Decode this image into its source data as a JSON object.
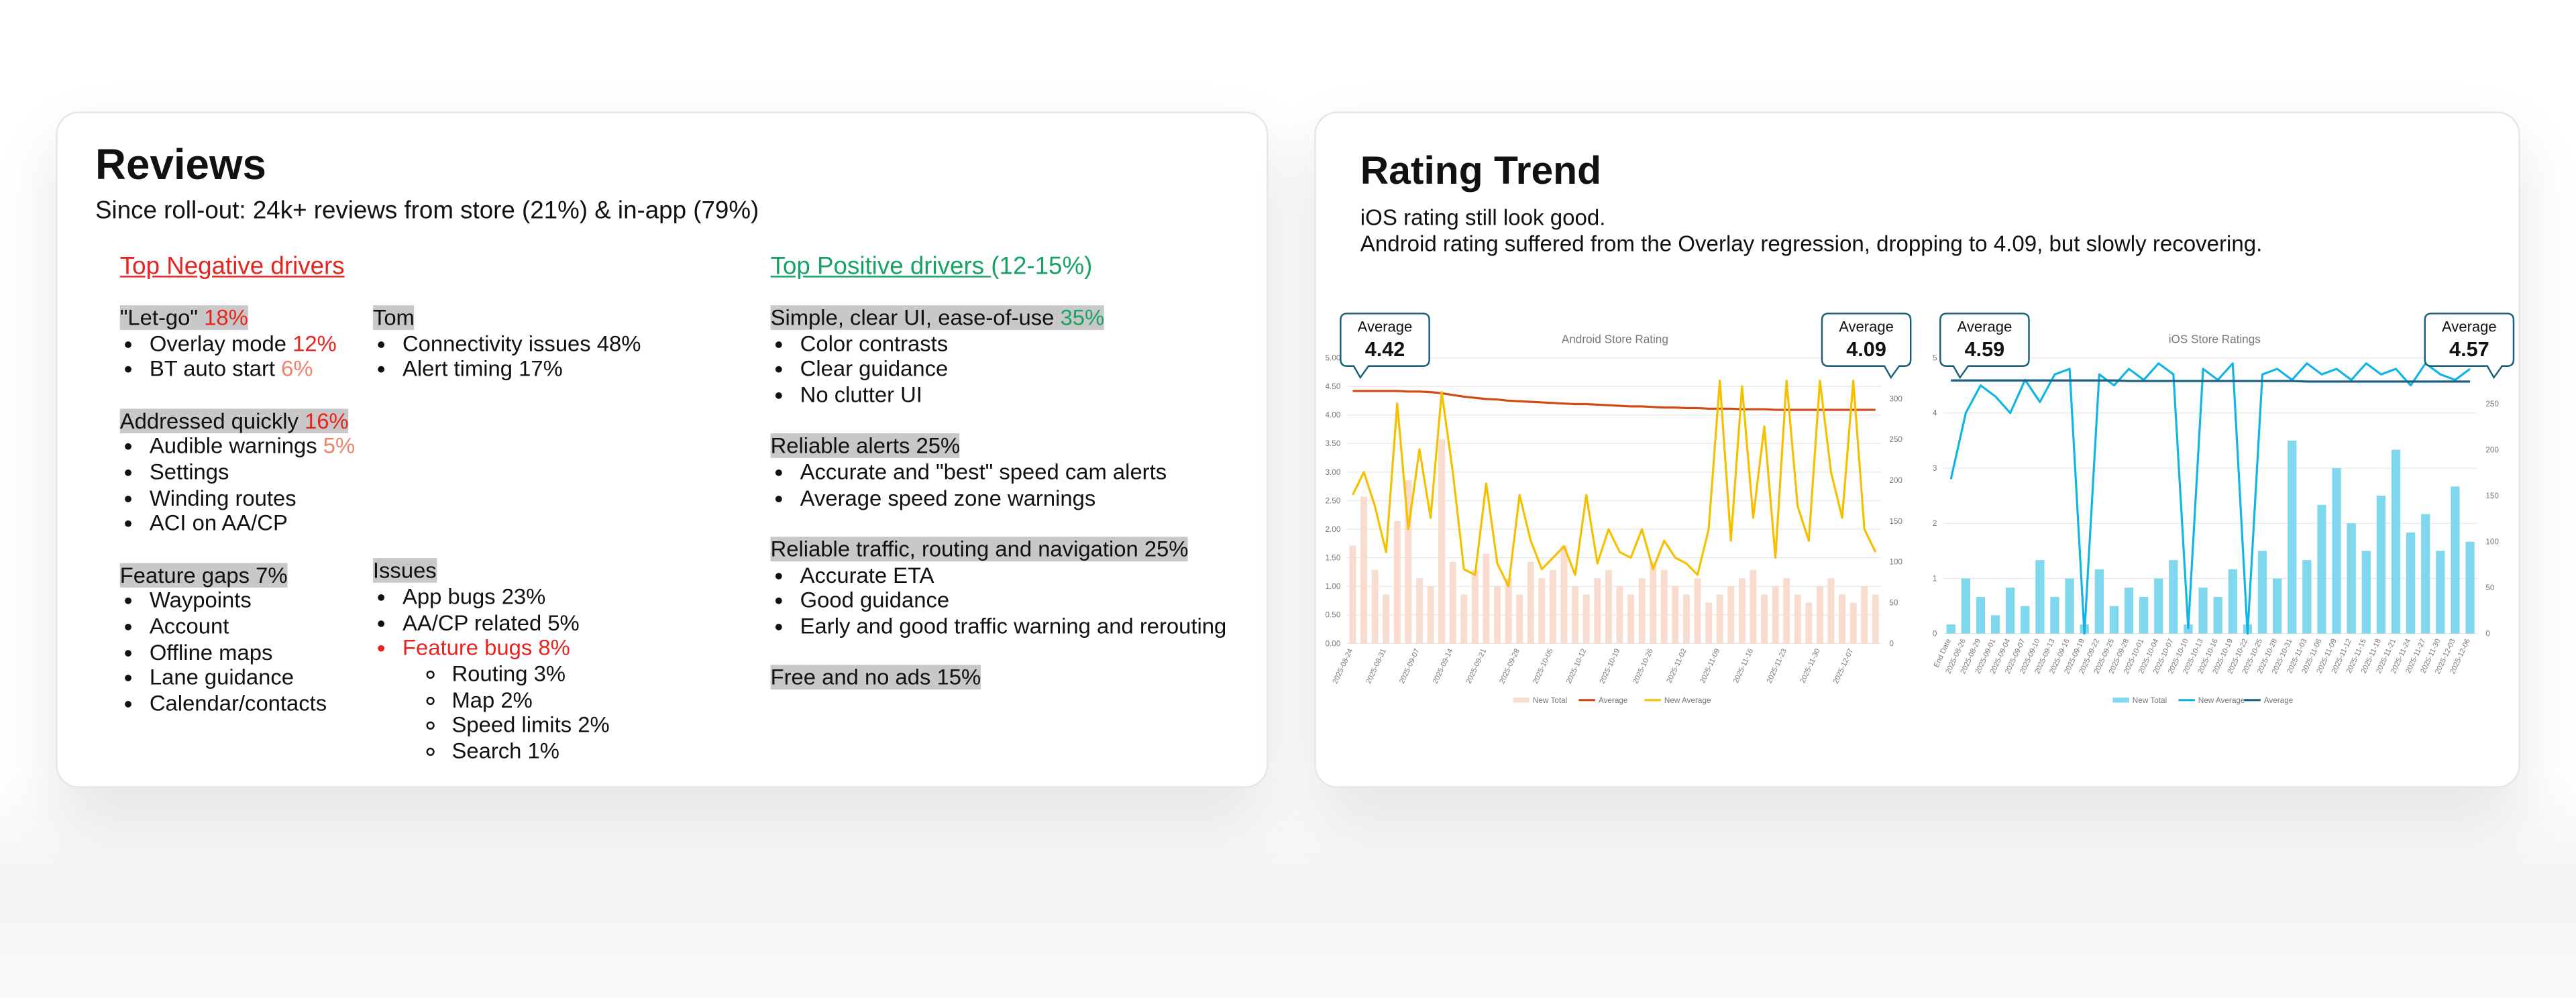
{
  "reviews": {
    "title": "Reviews",
    "subtitle": "Since roll-out: 24k+ reviews from store (21%) & in-app (79%)",
    "negative_heading": "Top Negative drivers",
    "positive_heading": "Top Positive drivers ",
    "positive_range": "(12-15%)",
    "columns": [
      [
        {
          "heading": [
            {
              "text": "\"Let-go\" "
            },
            {
              "text": "18%",
              "color": "#e8231d"
            }
          ],
          "items": [
            {
              "spans": [
                {
                  "text": "Overlay mode "
                },
                {
                  "text": "12%",
                  "color": "#e8231d"
                }
              ]
            },
            {
              "spans": [
                {
                  "text": "BT auto start "
                },
                {
                  "text": "6%",
                  "color": "#f0826a"
                }
              ]
            }
          ]
        },
        {
          "heading": [
            {
              "text": "Addressed quickly "
            },
            {
              "text": "16%",
              "color": "#e8231d"
            }
          ],
          "items": [
            {
              "spans": [
                {
                  "text": "Audible warnings "
                },
                {
                  "text": "5%",
                  "color": "#f0826a"
                }
              ]
            },
            {
              "spans": [
                {
                  "text": "Settings"
                }
              ]
            },
            {
              "spans": [
                {
                  "text": "Winding routes"
                }
              ]
            },
            {
              "spans": [
                {
                  "text": "ACI on AA/CP"
                }
              ]
            }
          ]
        },
        {
          "heading": [
            {
              "text": "Feature gaps 7%"
            }
          ],
          "items": [
            {
              "spans": [
                {
                  "text": "Waypoints"
                }
              ]
            },
            {
              "spans": [
                {
                  "text": "Account"
                }
              ]
            },
            {
              "spans": [
                {
                  "text": "Offline maps"
                }
              ]
            },
            {
              "spans": [
                {
                  "text": "Lane guidance"
                }
              ]
            },
            {
              "spans": [
                {
                  "text": "Calendar/contacts"
                }
              ]
            }
          ]
        }
      ],
      [
        {
          "heading": [
            {
              "text": "Tom"
            }
          ],
          "items": [
            {
              "spans": [
                {
                  "text": "Connectivity issues 48%"
                }
              ]
            },
            {
              "spans": [
                {
                  "text": "Alert timing 17%"
                }
              ]
            }
          ]
        },
        {
          "heading": [
            {
              "text": "Issues"
            }
          ],
          "items": [
            {
              "spans": [
                {
                  "text": "App bugs 23%"
                }
              ]
            },
            {
              "spans": [
                {
                  "text": "AA/CP related 5%"
                }
              ]
            },
            {
              "spans": [
                {
                  "text": "Feature bugs 8%"
                }
              ],
              "color": "#e8231d",
              "sub": [
                {
                  "spans": [
                    {
                      "text": "Routing 3%"
                    }
                  ]
                },
                {
                  "spans": [
                    {
                      "text": "Map 2%"
                    }
                  ]
                },
                {
                  "spans": [
                    {
                      "text": "Speed limits 2%"
                    }
                  ]
                },
                {
                  "spans": [
                    {
                      "text": "Search 1%"
                    }
                  ]
                }
              ]
            }
          ]
        }
      ],
      [
        {
          "heading": [
            {
              "text": "Simple, clear UI, ease-of-use "
            },
            {
              "text": "35%",
              "color": "#17a363"
            }
          ],
          "items": [
            {
              "spans": [
                {
                  "text": "Color contrasts"
                }
              ]
            },
            {
              "spans": [
                {
                  "text": "Clear guidance"
                }
              ]
            },
            {
              "spans": [
                {
                  "text": "No clutter UI"
                }
              ]
            }
          ]
        },
        {
          "heading": [
            {
              "text": "Reliable alerts 25%"
            }
          ],
          "items": [
            {
              "spans": [
                {
                  "text": "Accurate and \"best\" speed cam alerts"
                }
              ]
            },
            {
              "spans": [
                {
                  "text": "Average speed zone warnings"
                }
              ]
            }
          ]
        },
        {
          "heading": [
            {
              "text": "Reliable traffic, routing and navigation 25%"
            }
          ],
          "items": [
            {
              "spans": [
                {
                  "text": "Accurate ETA"
                }
              ]
            },
            {
              "spans": [
                {
                  "text": "Good guidance"
                }
              ]
            },
            {
              "spans": [
                {
                  "text": "Early and good traffic warning and rerouting"
                }
              ]
            }
          ]
        },
        {
          "heading": [
            {
              "text": "Free and no ads 15%"
            }
          ],
          "items": []
        }
      ]
    ]
  },
  "rating": {
    "title": "Rating Trend",
    "lines": [
      "iOS rating still look good.",
      "Android rating suffered from the Overlay regression, dropping to 4.09, but slowly recovering."
    ]
  },
  "chart_data": [
    {
      "type": "combo",
      "title": "Android Store Rating",
      "categories": [
        "2025-08-24",
        null,
        null,
        "2025-08-31",
        null,
        null,
        "2025-09-07",
        null,
        null,
        "2025-09-14",
        null,
        null,
        "2025-09-21",
        null,
        null,
        "2025-09-28",
        null,
        null,
        "2025-10-05",
        null,
        null,
        "2025-10-12",
        null,
        null,
        "2025-10-19",
        null,
        null,
        "2025-10-26",
        null,
        null,
        "2025-11-02",
        null,
        null,
        "2025-11-09",
        null,
        null,
        "2025-11-16",
        null,
        null,
        "2025-11-23",
        null,
        null,
        "2025-11-30",
        null,
        null,
        "2025-12-07",
        null,
        null
      ],
      "series": [
        {
          "name": "New Total",
          "kind": "bar",
          "axis": "y2",
          "color": "#f8dccf",
          "values": [
            120,
            180,
            90,
            60,
            150,
            200,
            80,
            70,
            250,
            100,
            60,
            90,
            110,
            70,
            80,
            60,
            100,
            80,
            90,
            120,
            70,
            60,
            80,
            90,
            70,
            60,
            80,
            100,
            90,
            70,
            60,
            80,
            50,
            60,
            70,
            80,
            90,
            60,
            70,
            80,
            60,
            50,
            70,
            80,
            60,
            50,
            70,
            60
          ]
        },
        {
          "name": "Average",
          "kind": "line",
          "color": "#d04a12",
          "values": [
            4.42,
            4.42,
            4.42,
            4.42,
            4.42,
            4.41,
            4.41,
            4.4,
            4.38,
            4.35,
            4.32,
            4.3,
            4.28,
            4.27,
            4.25,
            4.24,
            4.23,
            4.22,
            4.21,
            4.2,
            4.19,
            4.19,
            4.18,
            4.17,
            4.16,
            4.15,
            4.15,
            4.14,
            4.13,
            4.13,
            4.12,
            4.12,
            4.11,
            4.11,
            4.11,
            4.1,
            4.1,
            4.1,
            4.09,
            4.09,
            4.09,
            4.09,
            4.09,
            4.09,
            4.09,
            4.09,
            4.09,
            4.09
          ]
        },
        {
          "name": "New Average",
          "kind": "line",
          "color": "#f5c000",
          "values": [
            2.6,
            3.0,
            2.4,
            1.6,
            4.2,
            2.0,
            3.4,
            2.2,
            4.4,
            3.0,
            1.3,
            1.2,
            2.8,
            1.4,
            1.0,
            2.6,
            1.8,
            1.3,
            1.5,
            1.7,
            1.2,
            2.6,
            1.4,
            2.0,
            1.6,
            1.5,
            2.0,
            1.3,
            1.8,
            1.5,
            1.4,
            1.2,
            2.0,
            4.6,
            1.8,
            4.5,
            2.2,
            3.8,
            1.5,
            4.6,
            2.4,
            1.8,
            4.6,
            3.0,
            2.2,
            4.6,
            2.0,
            1.6
          ]
        }
      ],
      "ylim": [
        0,
        5
      ],
      "yticks": [
        {
          "value": 0,
          "label": "0.00"
        },
        {
          "value": 0.5,
          "label": "0.50"
        },
        {
          "value": 1,
          "label": "1.00"
        },
        {
          "value": 1.5,
          "label": "1.50"
        },
        {
          "value": 2,
          "label": "2.00"
        },
        {
          "value": 2.5,
          "label": "2.50"
        },
        {
          "value": 3,
          "label": "3.00"
        },
        {
          "value": 3.5,
          "label": "3.50"
        },
        {
          "value": 4,
          "label": "4.00"
        },
        {
          "value": 4.5,
          "label": "4.50"
        },
        {
          "value": 5,
          "label": "5.00"
        }
      ],
      "y2lim": [
        0,
        350
      ],
      "y2ticks": [
        0,
        50,
        100,
        150,
        200,
        250,
        300,
        350
      ],
      "grid": true,
      "annotations": [
        {
          "label": "Average",
          "value": 4.42
        },
        {
          "label": "Average",
          "value": 4.09
        }
      ]
    },
    {
      "type": "combo",
      "title": "iOS Store Ratings",
      "categories": [
        "End Date",
        "2025-08-26",
        "2025-08-29",
        "2025-09-01",
        "2025-09-04",
        "2025-09-07",
        "2025-09-10",
        "2025-09-13",
        "2025-09-16",
        "2025-09-19",
        "2025-09-22",
        "2025-09-25",
        "2025-09-28",
        "2025-10-01",
        "2025-10-04",
        "2025-10-07",
        "2025-10-10",
        "2025-10-13",
        "2025-10-16",
        "2025-10-19",
        "2025-10-22",
        "2025-10-25",
        "2025-10-28",
        "2025-10-31",
        "2025-11-03",
        "2025-11-06",
        "2025-11-09",
        "2025-11-12",
        "2025-11-15",
        "2025-11-18",
        "2025-11-21",
        "2025-11-24",
        "2025-11-27",
        "2025-11-30",
        "2025-12-03",
        "2025-12-06"
      ],
      "series": [
        {
          "name": "New Total",
          "kind": "bar",
          "axis": "y2",
          "color": "#7fd8ee",
          "values": [
            10,
            60,
            40,
            20,
            50,
            30,
            80,
            40,
            60,
            10,
            70,
            30,
            50,
            40,
            60,
            80,
            10,
            50,
            40,
            70,
            10,
            90,
            60,
            210,
            80,
            140,
            180,
            120,
            90,
            150,
            200,
            110,
            130,
            90,
            160,
            100
          ]
        },
        {
          "name": "New Average",
          "kind": "line",
          "color": "#12b4e6",
          "values": [
            2.8,
            4.0,
            4.5,
            4.3,
            4.0,
            4.6,
            4.2,
            4.7,
            4.8,
            0,
            4.7,
            4.5,
            4.8,
            4.6,
            4.9,
            4.7,
            0.1,
            4.8,
            4.6,
            4.9,
            0,
            4.7,
            4.8,
            4.6,
            4.9,
            4.7,
            4.8,
            4.6,
            4.9,
            4.7,
            4.8,
            4.5,
            4.9,
            4.7,
            4.6,
            4.8
          ]
        },
        {
          "name": "Average",
          "kind": "line",
          "color": "#1b5e86",
          "values": [
            4.59,
            4.59,
            4.59,
            4.59,
            4.59,
            4.59,
            4.59,
            4.59,
            4.59,
            4.59,
            4.59,
            4.59,
            4.58,
            4.58,
            4.58,
            4.58,
            4.58,
            4.58,
            4.58,
            4.58,
            4.58,
            4.58,
            4.58,
            4.58,
            4.57,
            4.57,
            4.57,
            4.57,
            4.57,
            4.57,
            4.57,
            4.57,
            4.57,
            4.57,
            4.57,
            4.57
          ]
        }
      ],
      "ylim": [
        0,
        5
      ],
      "yticks": [
        0,
        1,
        2,
        3,
        4,
        5
      ],
      "y2lim": [
        0,
        300
      ],
      "y2ticks": [
        0,
        50,
        100,
        150,
        200,
        250,
        300
      ],
      "grid": true,
      "annotations": [
        {
          "label": "Average",
          "value": 4.59
        },
        {
          "label": "Average",
          "value": 4.57
        }
      ]
    }
  ]
}
